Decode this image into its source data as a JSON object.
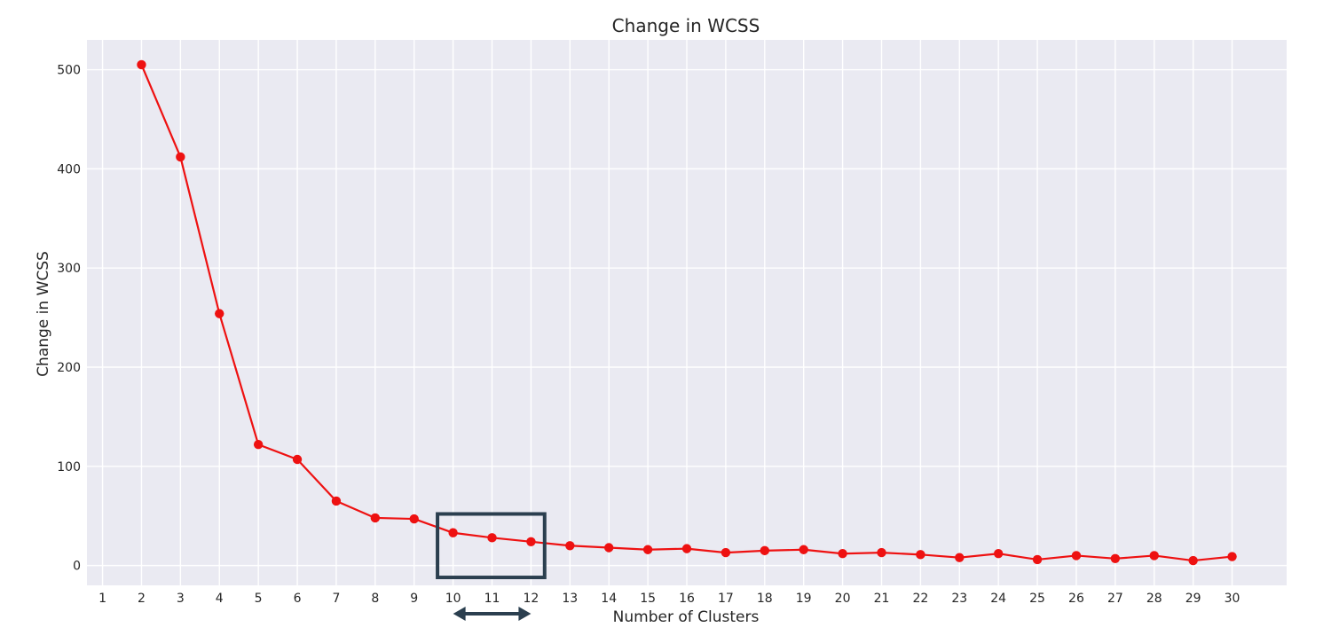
{
  "chart_data": {
    "type": "line",
    "title": "Change in WCSS",
    "xlabel": "Number of Clusters",
    "ylabel": "Change in WCSS",
    "x_ticks": [
      1,
      2,
      3,
      4,
      5,
      6,
      7,
      8,
      9,
      10,
      11,
      12,
      13,
      14,
      15,
      16,
      17,
      18,
      19,
      20,
      21,
      22,
      23,
      24,
      25,
      26,
      27,
      28,
      29,
      30
    ],
    "y_ticks": [
      0,
      100,
      200,
      300,
      400,
      500
    ],
    "xlim": [
      0.6,
      31.4
    ],
    "ylim": [
      -20,
      530
    ],
    "grid": true,
    "series": [
      {
        "x": [
          2,
          3,
          4,
          5,
          6,
          7,
          8,
          9,
          10,
          11,
          12,
          13,
          14,
          15,
          16,
          17,
          18,
          19,
          20,
          21,
          22,
          23,
          24,
          25,
          26,
          27,
          28,
          29,
          30
        ],
        "y": [
          505,
          412,
          254,
          122,
          107,
          65,
          48,
          47,
          33,
          28,
          24,
          20,
          18,
          16,
          17,
          13,
          15,
          16,
          12,
          13,
          11,
          8,
          12,
          6,
          10,
          7,
          10,
          5,
          9
        ]
      }
    ],
    "colors": {
      "line": "#ee1111",
      "background": "#eaeaf2",
      "grid": "#ffffff",
      "annotation": "#2b3f4f"
    },
    "annotation": {
      "type": "box-with-double-arrow",
      "x_range": [
        9.6,
        12.35
      ],
      "y_range": [
        -12,
        52
      ]
    }
  }
}
